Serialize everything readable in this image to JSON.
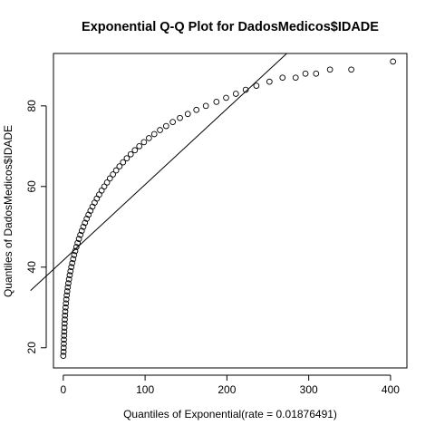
{
  "chart_data": {
    "type": "scatter",
    "title": "Exponential Q-Q Plot for DadosMedicos$IDADE",
    "xlabel": "Quantiles of Exponential(rate = 0.01876491)",
    "ylabel": "Quantiles of DadosMedicos$IDADE",
    "xlim": [
      -12,
      420
    ],
    "ylim": [
      15,
      93
    ],
    "xticks": [
      0,
      100,
      200,
      300,
      400
    ],
    "xtick_labels": [
      "0",
      "100",
      "200",
      "300",
      "400"
    ],
    "yticks": [
      20,
      40,
      60,
      80
    ],
    "ytick_labels": [
      "20",
      "40",
      "60",
      "80"
    ],
    "grid": false,
    "marker": "open-circle",
    "line_color": "#000000",
    "point_color": "#000000",
    "reference_line": {
      "intercept": 41.7,
      "slope": 0.1878
    },
    "series": [
      {
        "points": [
          [
            0,
            18
          ],
          [
            0.3,
            19
          ],
          [
            0.5,
            20
          ],
          [
            0.7,
            21
          ],
          [
            0.8,
            22
          ],
          [
            1.0,
            23
          ],
          [
            1.2,
            24
          ],
          [
            1.4,
            25
          ],
          [
            1.6,
            26
          ],
          [
            1.8,
            27
          ],
          [
            2.1,
            28
          ],
          [
            2.4,
            29
          ],
          [
            2.8,
            30
          ],
          [
            3.2,
            31
          ],
          [
            3.7,
            32
          ],
          [
            4.2,
            33
          ],
          [
            4.8,
            34
          ],
          [
            5.5,
            35
          ],
          [
            6.2,
            36
          ],
          [
            7.0,
            37
          ],
          [
            7.9,
            38
          ],
          [
            8.8,
            39
          ],
          [
            9.8,
            40
          ],
          [
            10.9,
            41
          ],
          [
            12.1,
            42
          ],
          [
            13.3,
            43
          ],
          [
            14.6,
            44
          ],
          [
            16.0,
            45
          ],
          [
            17.5,
            46
          ],
          [
            19.1,
            47
          ],
          [
            20.8,
            48
          ],
          [
            22.6,
            49
          ],
          [
            24.5,
            50
          ],
          [
            26.5,
            51
          ],
          [
            28.6,
            52
          ],
          [
            30.8,
            53
          ],
          [
            33.2,
            54
          ],
          [
            35.7,
            55
          ],
          [
            38.3,
            56
          ],
          [
            41.0,
            57
          ],
          [
            43.9,
            58
          ],
          [
            46.9,
            59
          ],
          [
            50.1,
            60
          ],
          [
            53.5,
            61
          ],
          [
            57.0,
            62
          ],
          [
            60.7,
            63
          ],
          [
            64.6,
            64
          ],
          [
            68.7,
            65
          ],
          [
            73.0,
            66
          ],
          [
            77.6,
            67
          ],
          [
            82.4,
            68
          ],
          [
            87.5,
            69
          ],
          [
            92.9,
            70
          ],
          [
            98.6,
            71
          ],
          [
            104.7,
            72
          ],
          [
            111.2,
            73
          ],
          [
            118.2,
            74
          ],
          [
            125.7,
            75
          ],
          [
            133.8,
            76
          ],
          [
            142.6,
            77
          ],
          [
            152.2,
            78
          ],
          [
            162.7,
            79
          ],
          [
            174.3,
            80
          ],
          [
            187.2,
            81
          ],
          [
            199.0,
            82
          ],
          [
            211.0,
            83
          ],
          [
            223.0,
            84
          ],
          [
            236.0,
            85
          ],
          [
            252.0,
            86
          ],
          [
            268.0,
            87
          ],
          [
            284.0,
            87
          ],
          [
            296.0,
            88
          ],
          [
            309.0,
            88
          ],
          [
            326.0,
            89
          ],
          [
            352.0,
            89
          ],
          [
            403.0,
            91
          ]
        ]
      }
    ]
  }
}
